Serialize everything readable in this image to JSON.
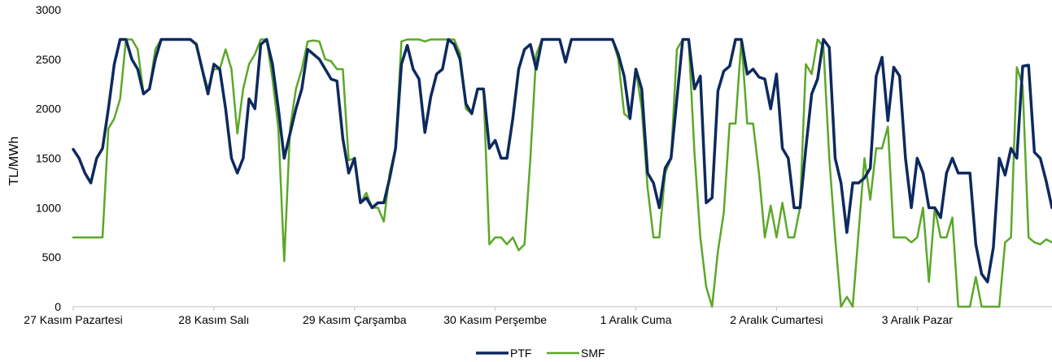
{
  "chart_data": {
    "type": "line",
    "title": "",
    "xlabel": "",
    "ylabel": "TL/MWh",
    "ylim": [
      0,
      3000
    ],
    "yticks": [
      "0",
      "500",
      "1000",
      "1500",
      "2000",
      "2500",
      "3000"
    ],
    "grid": false,
    "legend_position": "bottom",
    "day_labels": [
      "27 Kasım Pazartesi",
      "28 Kasım Salı",
      "29 Kasım Çarşamba",
      "30 Kasım Perşembe",
      "1 Aralık Cuma",
      "2 Aralık Cumartesi",
      "3 Aralık Pazar"
    ],
    "hours_per_day": 24,
    "series": [
      {
        "name": "PTF",
        "color": "#0d2a5e",
        "values": [
          1590,
          1500,
          1350,
          1250,
          1500,
          1600,
          2000,
          2450,
          2700,
          2700,
          2500,
          2400,
          2150,
          2200,
          2500,
          2700,
          2700,
          2700,
          2700,
          2700,
          2700,
          2650,
          2400,
          2150,
          2450,
          2400,
          2000,
          1500,
          1350,
          1500,
          2100,
          2000,
          2650,
          2700,
          2450,
          2000,
          1500,
          1750,
          2000,
          2200,
          2600,
          2550,
          2500,
          2400,
          2300,
          2280,
          1700,
          1350,
          1500,
          1050,
          1100,
          1000,
          1050,
          1050,
          1300,
          1600,
          2450,
          2640,
          2400,
          2300,
          1760,
          2120,
          2350,
          2400,
          2700,
          2650,
          2500,
          2050,
          1950,
          2200,
          2200,
          1600,
          1680,
          1500,
          1500,
          1900,
          2400,
          2600,
          2650,
          2400,
          2700,
          2700,
          2700,
          2700,
          2470,
          2700,
          2700,
          2700,
          2700,
          2700,
          2700,
          2700,
          2700,
          2550,
          2330,
          1900,
          2400,
          2200,
          1350,
          1250,
          1000,
          1400,
          1500,
          2100,
          2700,
          2700,
          2200,
          2330,
          1050,
          1100,
          2180,
          2380,
          2430,
          2700,
          2700,
          2350,
          2400,
          2320,
          2300,
          2000,
          2350,
          1600,
          1500,
          1000,
          1000,
          1600,
          2150,
          2300,
          2700,
          2620,
          1500,
          1250,
          750,
          1250,
          1250,
          1300,
          1400,
          2330,
          2520,
          1880,
          2420,
          2330,
          1500,
          1000,
          1500,
          1350,
          1000,
          1000,
          900,
          1350,
          1500,
          1350,
          1350,
          1350,
          630,
          330,
          250,
          600,
          1500,
          1330,
          1600,
          1500,
          2430,
          2440,
          1560,
          1500,
          1270,
          1000
        ]
      },
      {
        "name": "SMF",
        "color": "#5ba829",
        "values": [
          700,
          700,
          700,
          700,
          700,
          700,
          1800,
          1900,
          2100,
          2700,
          2700,
          2600,
          2150,
          2200,
          2600,
          2700,
          2700,
          2700,
          2700,
          2700,
          2700,
          2660,
          2400,
          2200,
          2400,
          2400,
          2600,
          2400,
          1750,
          2200,
          2450,
          2550,
          2700,
          2700,
          2300,
          1800,
          460,
          1800,
          2200,
          2400,
          2680,
          2690,
          2680,
          2500,
          2480,
          2400,
          2400,
          1480,
          1500,
          1050,
          1150,
          1000,
          1000,
          860,
          1350,
          1600,
          2680,
          2700,
          2700,
          2700,
          2680,
          2700,
          2700,
          2700,
          2700,
          2700,
          2560,
          2000,
          1950,
          2200,
          2200,
          630,
          700,
          700,
          630,
          700,
          570,
          630,
          1500,
          2550,
          2700,
          2700,
          2700,
          2700,
          2470,
          2700,
          2700,
          2700,
          2700,
          2700,
          2700,
          2700,
          2700,
          2500,
          1950,
          1900,
          2400,
          2000,
          1200,
          700,
          700,
          1350,
          1500,
          2600,
          2700,
          2700,
          1550,
          700,
          200,
          0,
          560,
          950,
          1850,
          1850,
          2700,
          1850,
          1850,
          1350,
          700,
          1020,
          700,
          1050,
          700,
          700,
          1000,
          2450,
          2350,
          2700,
          2630,
          1500,
          700,
          0,
          100,
          0,
          750,
          1500,
          1080,
          1600,
          1600,
          1820,
          700,
          700,
          700,
          650,
          700,
          1000,
          250,
          1000,
          700,
          700,
          900,
          0,
          0,
          0,
          300,
          0,
          0,
          0,
          0,
          650,
          700,
          2420,
          2230,
          700,
          650,
          630,
          680,
          650
        ]
      }
    ]
  }
}
